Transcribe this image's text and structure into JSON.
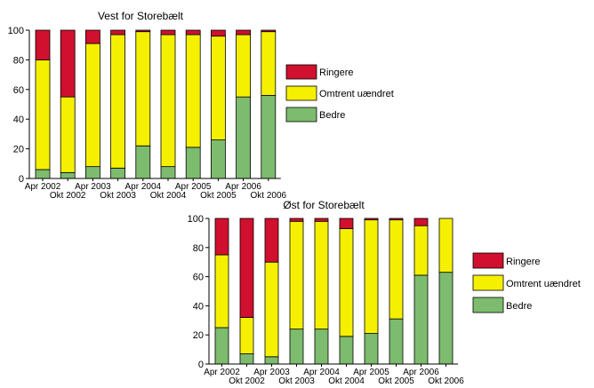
{
  "colors": {
    "Ringere": "#d0102e",
    "Omtrent uændret": "#f5f000",
    "Bedre": "#7dbb6e",
    "axis": "#000000"
  },
  "chart_data": [
    {
      "type": "bar",
      "stacked": true,
      "title": "Vest for Storebælt",
      "ylim": [
        0,
        100
      ],
      "yticks": [
        0,
        20,
        40,
        60,
        80,
        100
      ],
      "legend_position": "right",
      "categories": [
        "Apr 2002",
        "Okt 2002",
        "Apr 2003",
        "Okt 2003",
        "Apr 2004",
        "Okt 2004",
        "Apr 2005",
        "Okt 2005",
        "Apr 2006",
        "Okt 2006"
      ],
      "series": [
        {
          "name": "Ringere",
          "values": [
            20,
            45,
            9,
            3,
            1,
            3,
            3,
            4,
            3,
            1
          ]
        },
        {
          "name": "Omtrent uændret",
          "values": [
            74,
            51,
            83,
            90,
            77,
            89,
            76,
            70,
            42,
            43
          ]
        },
        {
          "name": "Bedre",
          "values": [
            6,
            4,
            8,
            7,
            22,
            8,
            21,
            26,
            55,
            56
          ]
        }
      ]
    },
    {
      "type": "bar",
      "stacked": true,
      "title": "Øst for Storebælt",
      "ylim": [
        0,
        100
      ],
      "yticks": [
        0,
        20,
        40,
        60,
        80,
        100
      ],
      "legend_position": "right",
      "categories": [
        "Apr 2002",
        "Okt 2002",
        "Apr 2003",
        "Okt 2003",
        "Apr 2004",
        "Okt 2004",
        "Apr 2005",
        "Okt 2005",
        "Apr 2006",
        "Okt 2006"
      ],
      "series": [
        {
          "name": "Ringere",
          "values": [
            25,
            68,
            30,
            2,
            2,
            7,
            1,
            1,
            5,
            0
          ]
        },
        {
          "name": "Omtrent uændret",
          "values": [
            50,
            25,
            65,
            74,
            74,
            74,
            78,
            68,
            34,
            37
          ]
        },
        {
          "name": "Bedre",
          "values": [
            25,
            7,
            5,
            24,
            24,
            19,
            21,
            31,
            61,
            63
          ]
        }
      ]
    }
  ]
}
